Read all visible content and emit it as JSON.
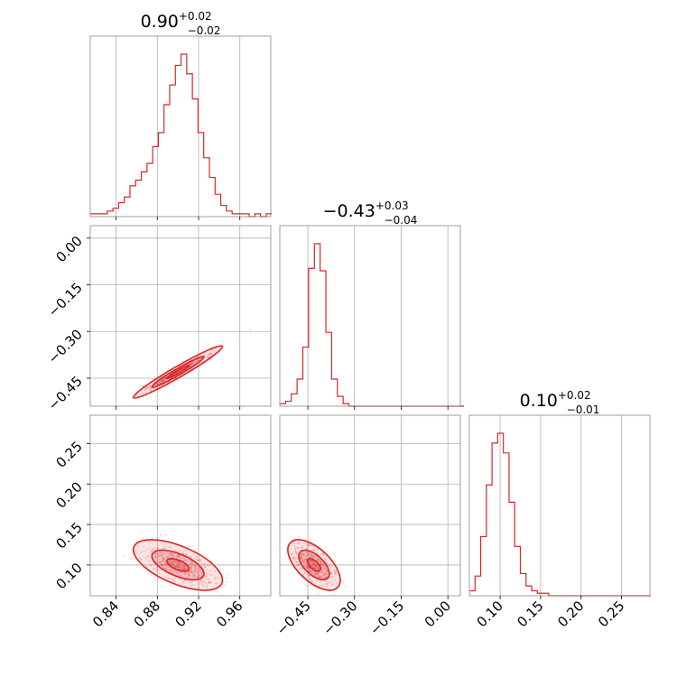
{
  "chart_data": {
    "type": "corner",
    "color": "#d62728",
    "grid": true,
    "parameters": [
      {
        "median": "0.90",
        "plus": "+0.02",
        "minus": "−0.02"
      },
      {
        "median": "−0.43",
        "plus": "+0.03",
        "minus": "−0.04"
      },
      {
        "median": "0.10",
        "plus": "+0.02",
        "minus": "−0.01"
      }
    ],
    "axes": {
      "p1": {
        "range": [
          0.815,
          0.99
        ],
        "ticks": [
          0.84,
          0.88,
          0.92,
          0.96
        ],
        "ticklabels": [
          "0.84",
          "0.88",
          "0.92",
          "0.96"
        ]
      },
      "p2": {
        "range": [
          -0.54,
          0.04
        ],
        "ticks": [
          -0.45,
          -0.3,
          -0.15,
          0.0
        ],
        "ticklabels": [
          "−0.45",
          "−0.30",
          "−0.15",
          "0.00"
        ]
      },
      "p3": {
        "range": [
          0.062,
          0.285
        ],
        "ticks": [
          0.1,
          0.15,
          0.2,
          0.25
        ],
        "ticklabels": [
          "0.10",
          "0.15",
          "0.20",
          "0.25"
        ]
      }
    },
    "histograms": [
      {
        "param": "p1",
        "x": [
          0.815,
          0.8205,
          0.826,
          0.8315,
          0.837,
          0.8425,
          0.848,
          0.8535,
          0.859,
          0.8645,
          0.87,
          0.8755,
          0.881,
          0.8865,
          0.892,
          0.8975,
          0.903,
          0.9085,
          0.914,
          0.9195,
          0.925,
          0.9305,
          0.936,
          0.9415,
          0.947,
          0.9525,
          0.958,
          0.9635,
          0.969,
          0.9745,
          0.98,
          0.9855
        ],
        "counts": [
          1,
          1,
          1,
          2,
          3,
          5,
          7,
          11,
          13,
          16,
          19,
          25,
          30,
          40,
          47,
          54,
          58,
          51,
          42,
          30,
          21,
          14,
          8,
          4,
          2,
          1,
          1,
          1,
          0,
          1,
          0,
          1
        ]
      },
      {
        "param": "p2",
        "x": [
          -0.54,
          -0.5215,
          -0.503,
          -0.4845,
          -0.466,
          -0.4475,
          -0.429,
          -0.4105,
          -0.392,
          -0.3735,
          -0.355,
          -0.3365,
          -0.318,
          -0.2995,
          -0.281,
          -0.2625,
          -0.244,
          -0.2255,
          -0.207,
          -0.1885,
          -0.17,
          -0.1515,
          -0.133,
          -0.1145,
          -0.096,
          -0.0775,
          -0.059,
          -0.0405,
          -0.022,
          -0.0035,
          0.015,
          0.0335
        ],
        "counts": [
          1,
          2,
          5,
          11,
          24,
          56,
          66,
          55,
          30,
          11,
          4,
          1,
          0,
          0,
          0,
          0,
          0,
          0,
          0,
          0,
          0,
          0,
          0,
          0,
          0,
          0,
          0,
          0,
          0,
          0,
          0,
          0
        ]
      },
      {
        "param": "p3",
        "x": [
          0.062,
          0.069,
          0.076,
          0.083,
          0.09,
          0.097,
          0.104,
          0.111,
          0.118,
          0.125,
          0.132,
          0.139,
          0.146,
          0.153,
          0.16,
          0.167,
          0.174,
          0.181,
          0.188,
          0.195,
          0.202,
          0.209,
          0.216,
          0.223,
          0.23,
          0.237,
          0.244,
          0.251,
          0.258,
          0.265,
          0.272,
          0.279
        ],
        "counts": [
          2,
          8,
          24,
          45,
          62,
          66,
          58,
          38,
          20,
          9,
          4,
          2,
          1,
          1,
          0,
          0,
          0,
          0,
          0,
          0,
          0,
          0,
          0,
          0,
          0,
          0,
          0,
          0,
          0,
          0,
          0,
          0
        ]
      }
    ],
    "scatter_panels": [
      {
        "x": "p1",
        "y": "p2",
        "correlation": "strong positive",
        "center": [
          0.9,
          -0.43
        ]
      },
      {
        "x": "p1",
        "y": "p3",
        "correlation": "negative",
        "center": [
          0.9,
          0.1
        ]
      },
      {
        "x": "p2",
        "y": "p3",
        "correlation": "negative",
        "center": [
          -0.43,
          0.1
        ]
      }
    ]
  }
}
